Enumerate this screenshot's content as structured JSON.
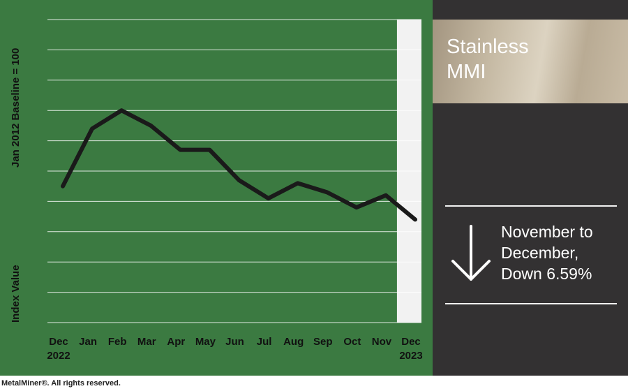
{
  "title": [
    "Stainless",
    "MMI"
  ],
  "change": {
    "direction": "down",
    "icon": "down-arrow-icon",
    "lines": [
      "November to",
      "December,",
      "Down 6.59%"
    ]
  },
  "footer": "MetalMiner®. All rights reserved.",
  "colors": {
    "chart_bg": "#3b7a41",
    "side_bg": "#333132",
    "line": "#1a1a1a",
    "grid": "#ffffff",
    "highlight": "#f2f2f2"
  },
  "chart_data": {
    "type": "line",
    "ylabel_top": "Jan 2012 Baseline = 100",
    "ylabel_bottom": "Index Value",
    "x": [
      "Dec 2022",
      "Jan",
      "Feb",
      "Mar",
      "Apr",
      "May",
      "Jun",
      "Jul",
      "Aug",
      "Sep",
      "Oct",
      "Nov",
      "Dec 2023"
    ],
    "tick_labels": [
      [
        "Dec",
        "2022"
      ],
      [
        "Jan"
      ],
      [
        "Feb"
      ],
      [
        "Mar"
      ],
      [
        "Apr"
      ],
      [
        "May"
      ],
      [
        "Jun"
      ],
      [
        "Jul"
      ],
      [
        "Aug"
      ],
      [
        "Sep"
      ],
      [
        "Oct"
      ],
      [
        "Nov"
      ],
      [
        "Dec",
        "2023"
      ]
    ],
    "series": [
      {
        "values": [
          0.45,
          0.64,
          0.7,
          0.65,
          0.57,
          0.57,
          0.47,
          0.41,
          0.46,
          0.43,
          0.38,
          0.42,
          0.34
        ]
      }
    ],
    "ylim": [
      0,
      1
    ],
    "grid_lines": 10,
    "highlight_category": "Dec 2023",
    "y_tick_labels": false,
    "grid": true
  }
}
